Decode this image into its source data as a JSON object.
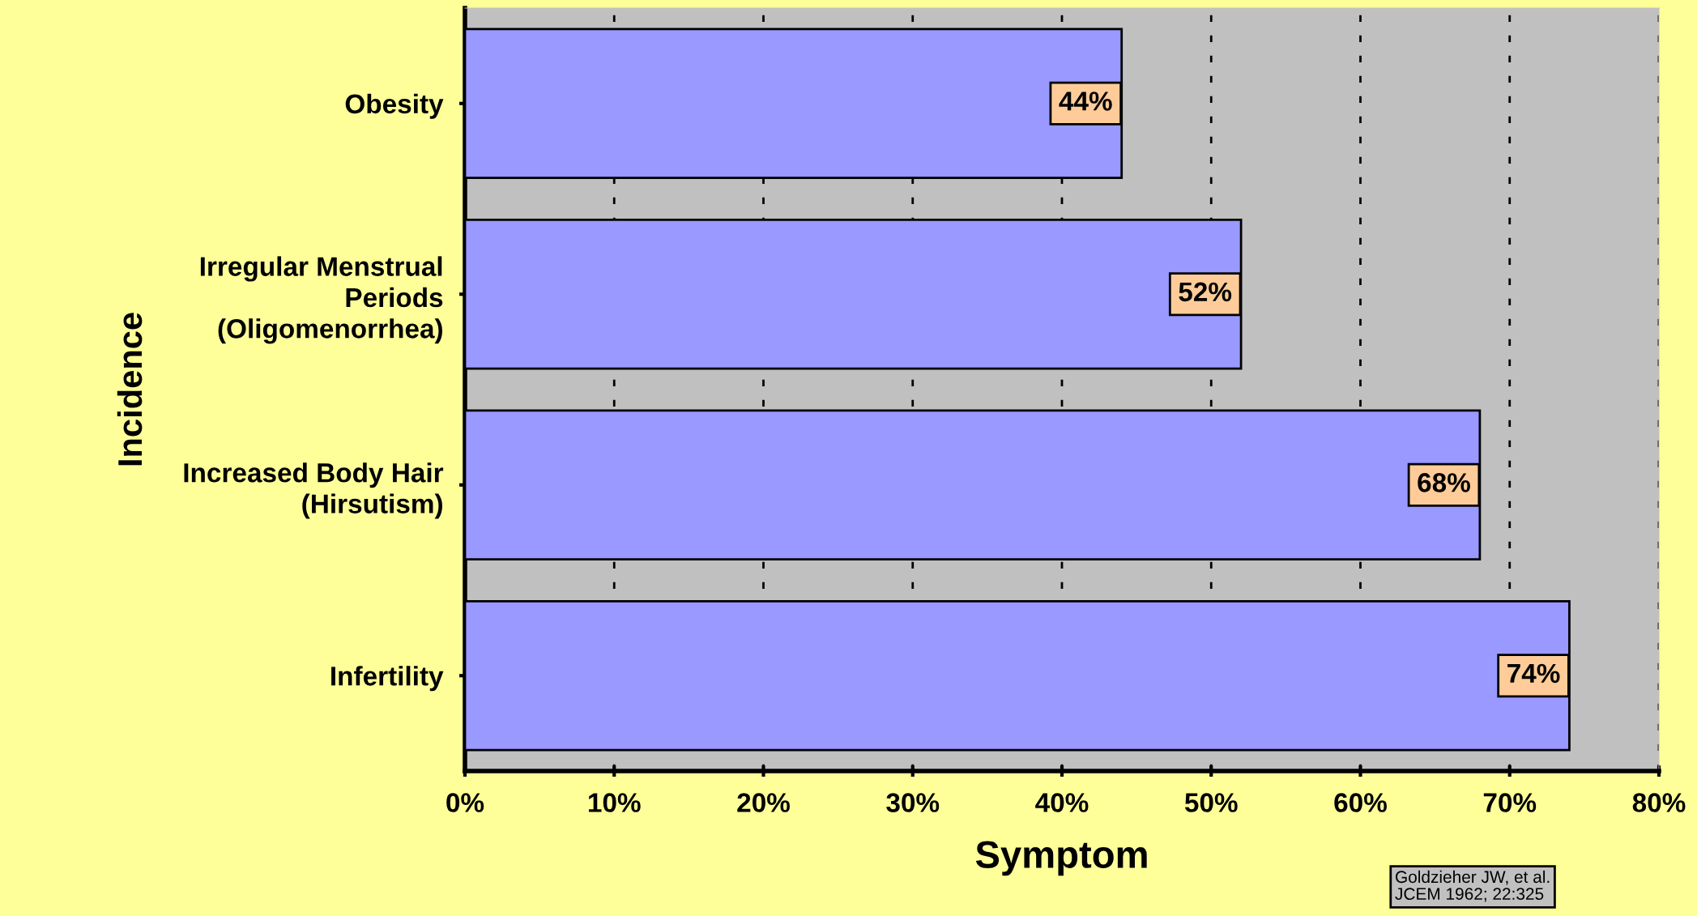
{
  "chart_data": {
    "type": "bar",
    "orientation": "horizontal",
    "xlabel": "Symptom",
    "ylabel": "Incidence",
    "categories": [
      "Obesity",
      "Irregular Menstrual\nPeriods\n(Oligomenorrhea)",
      "Increased Body Hair\n(Hirsutism)",
      "Infertility"
    ],
    "values": [
      44,
      52,
      68,
      74
    ],
    "value_labels": [
      "44%",
      "52%",
      "68%",
      "74%"
    ],
    "color": "#9999ff",
    "xlim": [
      0,
      80
    ],
    "xticks": [
      {
        "value": 0,
        "label": "0%"
      },
      {
        "value": 10,
        "label": "10%"
      },
      {
        "value": 20,
        "label": "20%"
      },
      {
        "value": 30,
        "label": "30%"
      },
      {
        "value": 40,
        "label": "40%"
      },
      {
        "value": 50,
        "label": "50%"
      },
      {
        "value": 60,
        "label": "60%"
      },
      {
        "value": 70,
        "label": "70%"
      },
      {
        "value": 80,
        "label": "80%"
      }
    ],
    "grid": "x",
    "annotations": [
      "Goldzieher JW, et al.\nJCEM 1962; 22:325"
    ]
  }
}
